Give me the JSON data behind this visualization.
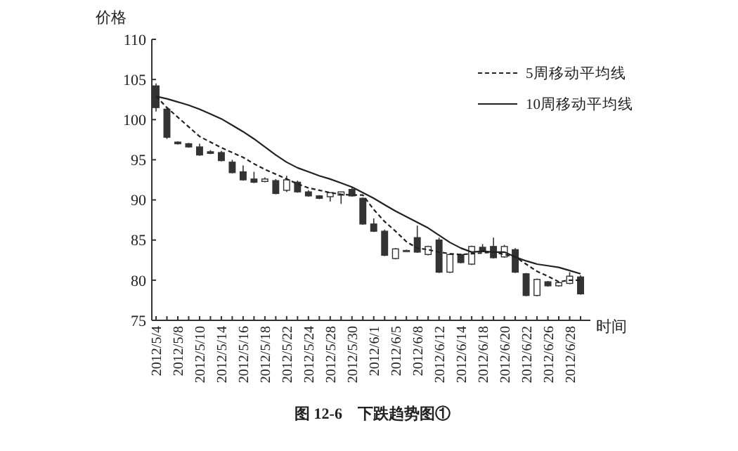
{
  "chart_data": {
    "type": "candlestick",
    "title": "图 12-6　下跌趋势图①",
    "ylabel": "价格",
    "xlabel": "时间",
    "categories": [
      "2012/5/4",
      null,
      "2012/5/8",
      null,
      "2012/5/10",
      null,
      "2012/5/14",
      null,
      "2012/5/16",
      null,
      "2012/5/18",
      null,
      "2012/5/22",
      null,
      "2012/5/24",
      null,
      "2012/5/28",
      null,
      "2012/5/30",
      null,
      "2012/6/1",
      null,
      "2012/6/5",
      null,
      "2012/6/8",
      null,
      "2012/6/12",
      null,
      "2012/6/14",
      null,
      "2012/6/18",
      null,
      "2012/6/20",
      null,
      "2012/6/22",
      null,
      "2012/6/26",
      null,
      "2012/6/28",
      null
    ],
    "ohlc": [
      [
        104.2,
        104.5,
        101,
        101.5
      ],
      [
        101.3,
        101.5,
        97.6,
        97.8
      ],
      [
        97.2,
        97.3,
        96.9,
        97.0
      ],
      [
        97.0,
        97.1,
        96.5,
        96.6
      ],
      [
        96.6,
        97.0,
        95.5,
        95.6
      ],
      [
        96.0,
        96.2,
        95.7,
        95.8
      ],
      [
        95.9,
        96.1,
        94.8,
        94.9
      ],
      [
        94.7,
        95.0,
        93.3,
        93.4
      ],
      [
        93.5,
        94.3,
        92.4,
        92.5
      ],
      [
        92.6,
        93.5,
        92.1,
        92.2
      ],
      [
        92.3,
        92.8,
        92.2,
        92.6
      ],
      [
        92.4,
        92.6,
        90.7,
        90.8
      ],
      [
        91.2,
        93.0,
        91.0,
        92.5
      ],
      [
        92.2,
        92.4,
        90.9,
        91.0
      ],
      [
        91.0,
        91.2,
        90.4,
        90.5
      ],
      [
        90.5,
        90.6,
        90.1,
        90.2
      ],
      [
        90.4,
        90.9,
        89.8,
        90.9
      ],
      [
        90.6,
        91.0,
        89.5,
        91.0
      ],
      [
        91.3,
        91.6,
        90.4,
        90.5
      ],
      [
        90.2,
        90.3,
        86.9,
        87.0
      ],
      [
        87.0,
        87.7,
        86.0,
        86.1
      ],
      [
        86.1,
        86.3,
        83.0,
        83.1
      ],
      [
        82.7,
        84.0,
        82.6,
        83.9
      ],
      [
        83.6,
        83.8,
        83.5,
        83.7
      ],
      [
        85.3,
        86.8,
        83.4,
        83.5
      ],
      [
        83.2,
        84.3,
        83.1,
        84.2
      ],
      [
        85.0,
        85.3,
        80.9,
        81.0
      ],
      [
        81.0,
        83.3,
        80.9,
        83.2
      ],
      [
        83.2,
        83.3,
        82.1,
        82.2
      ],
      [
        82.0,
        84.3,
        81.9,
        84.2
      ],
      [
        84.1,
        84.5,
        83.6,
        83.7
      ],
      [
        84.2,
        85.3,
        82.7,
        82.8
      ],
      [
        82.9,
        84.4,
        82.8,
        84.2
      ],
      [
        83.8,
        84.0,
        80.9,
        81.0
      ],
      [
        80.8,
        80.9,
        78.0,
        78.1
      ],
      [
        78.1,
        80.2,
        78.0,
        80.1
      ],
      [
        79.8,
        79.9,
        79.2,
        79.3
      ],
      [
        79.3,
        79.8,
        79.2,
        79.7
      ],
      [
        79.6,
        81.0,
        79.5,
        80.5
      ],
      [
        80.4,
        80.6,
        78.2,
        78.3
      ]
    ],
    "series": [
      {
        "type": "line",
        "name": "5周移动平均线",
        "color": "#222222",
        "line_style": "dashed",
        "values": [
          102.9,
          101.5,
          100.3,
          99.1,
          97.9,
          97.2,
          96.5,
          95.9,
          95.3,
          94.5,
          93.8,
          93.2,
          92.6,
          92.0,
          91.5,
          91.2,
          90.9,
          90.7,
          90.6,
          90.6,
          88.8,
          87.3,
          86.1,
          84.8,
          84.0,
          83.8,
          83.5,
          83.3,
          83.2,
          83.3,
          83.4,
          83.5,
          83.2,
          82.9,
          82.0,
          81.1,
          80.5,
          79.8,
          80.0,
          80.0
        ]
      },
      {
        "type": "line",
        "name": "10周移动平均线",
        "color": "#222222",
        "line_style": "solid",
        "values": [
          102.9,
          102.6,
          102.2,
          101.8,
          101.3,
          100.7,
          100.1,
          99.3,
          98.5,
          97.6,
          96.6,
          95.6,
          94.7,
          94.0,
          93.5,
          93.0,
          92.6,
          92.1,
          91.6,
          90.9,
          90.2,
          89.4,
          88.6,
          87.9,
          87.2,
          86.5,
          85.6,
          84.7,
          84.0,
          83.5,
          83.6,
          83.5,
          83.5,
          82.9,
          82.4,
          82.0,
          81.8,
          81.6,
          81.2,
          80.8
        ]
      }
    ],
    "ylim": [
      75,
      110
    ],
    "yticks": [
      75,
      80,
      85,
      90,
      95,
      100,
      105,
      110
    ],
    "grid": false,
    "legend": "top right"
  }
}
